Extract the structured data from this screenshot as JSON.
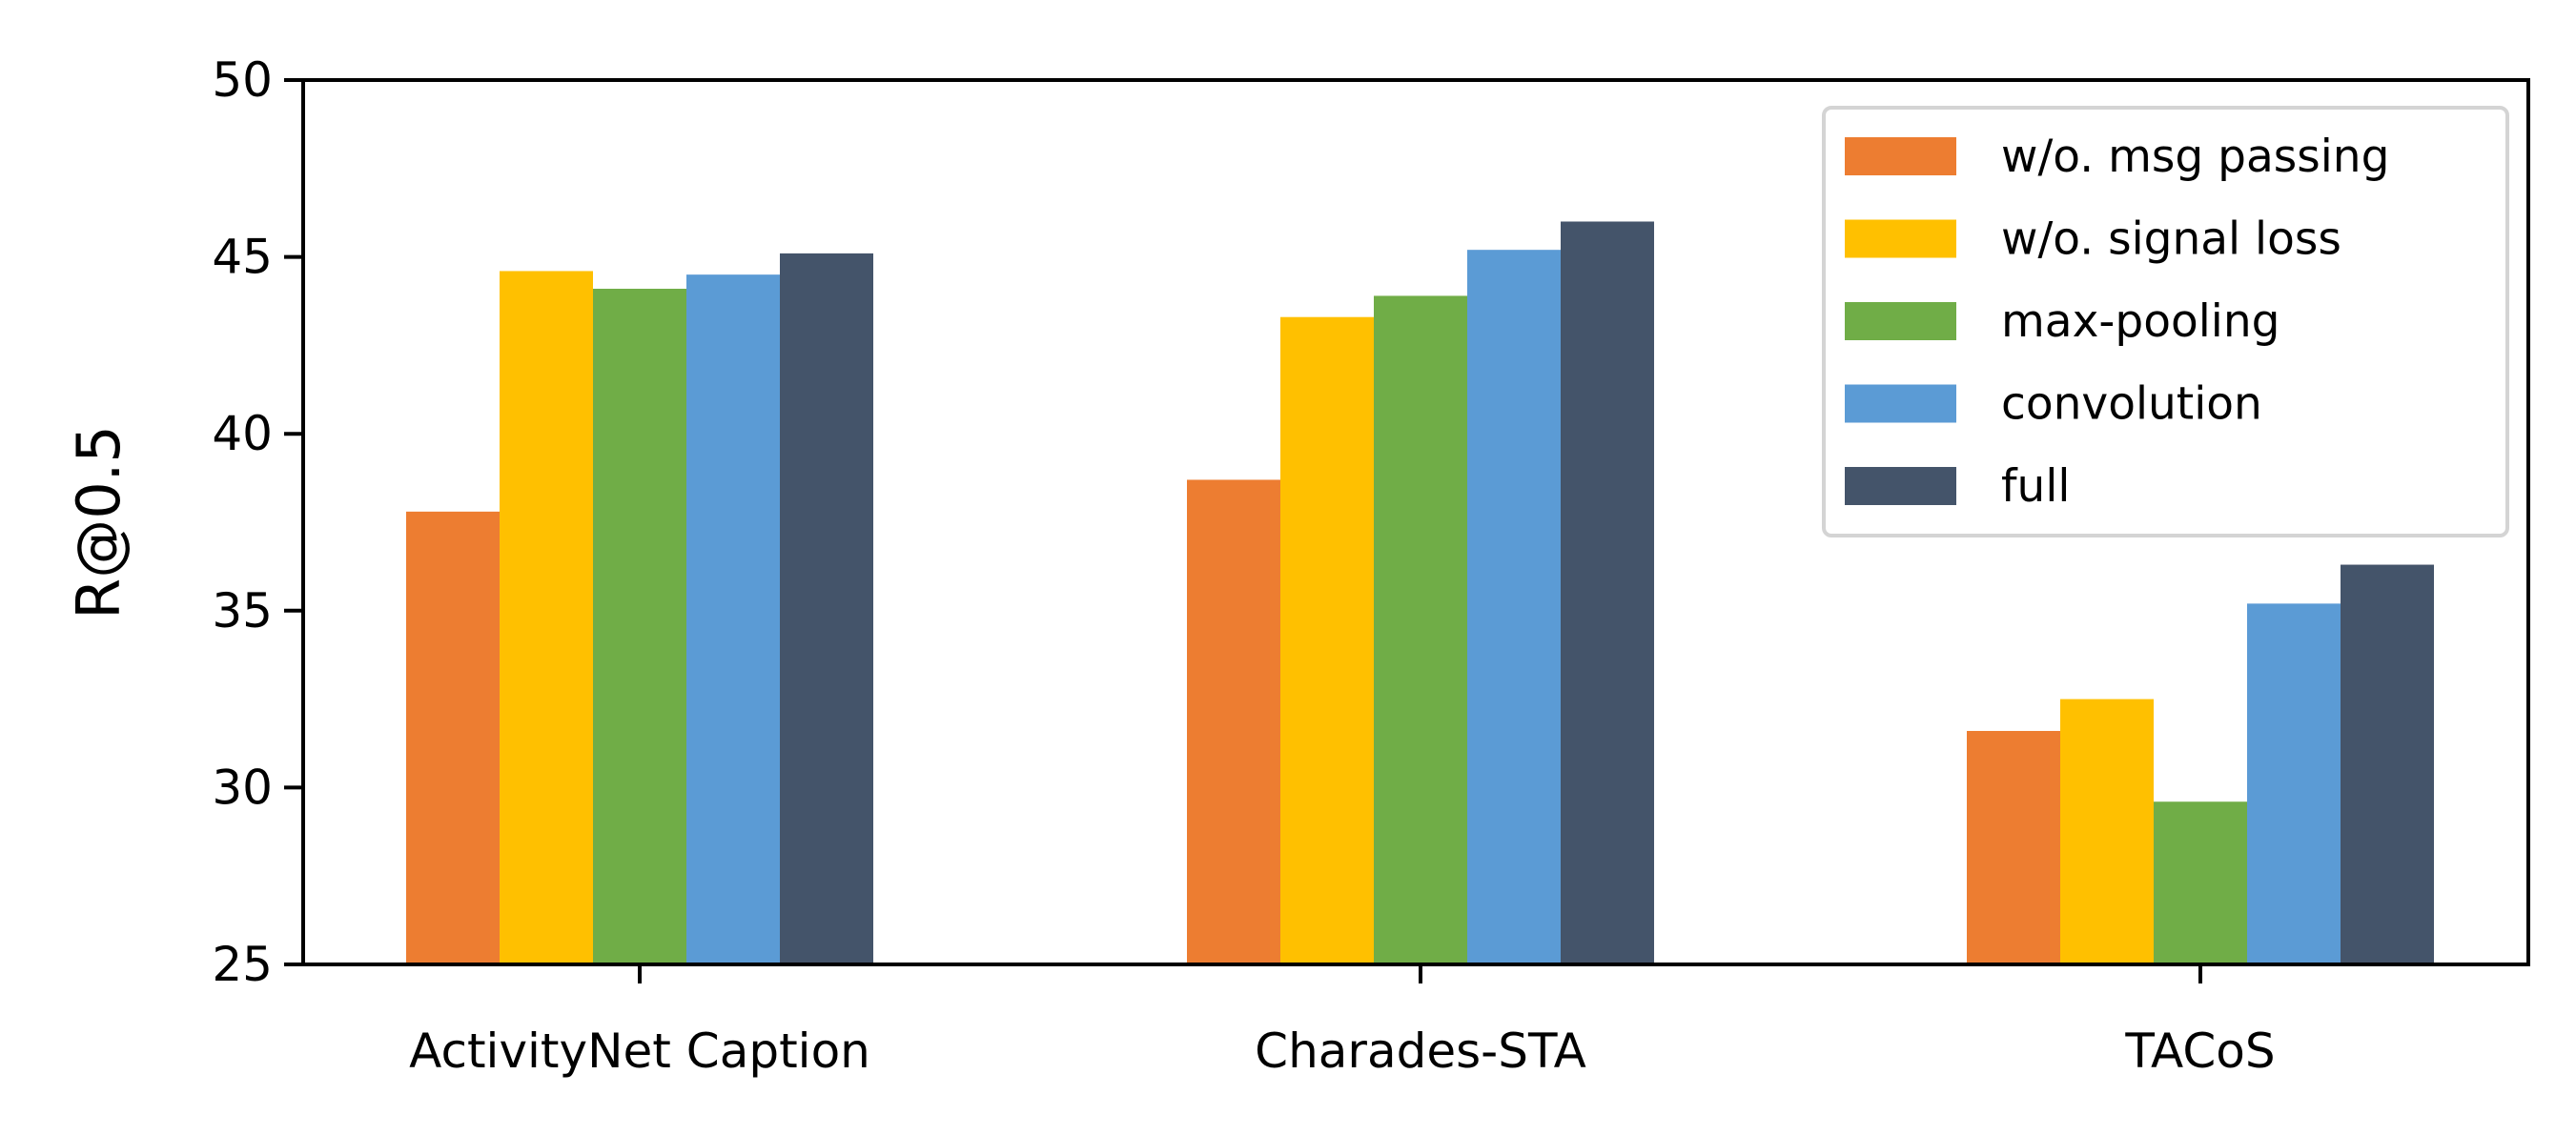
{
  "chart_data": {
    "type": "bar",
    "title": "",
    "xlabel": "",
    "ylabel": "R@0.5",
    "ylim": [
      25,
      50
    ],
    "yticks": [
      25,
      30,
      35,
      40,
      45,
      50
    ],
    "grid": false,
    "legend_position": "top-right",
    "categories": [
      "ActivityNet Caption",
      "Charades-STA",
      "TACoS"
    ],
    "series": [
      {
        "name": "w/o. msg passing",
        "color": "#ED7D31",
        "values": [
          37.8,
          38.7,
          31.6
        ]
      },
      {
        "name": "w/o. signal loss",
        "color": "#FFC000",
        "values": [
          44.6,
          43.3,
          32.5
        ]
      },
      {
        "name": "max-pooling",
        "color": "#70AD47",
        "values": [
          44.1,
          43.9,
          29.6
        ]
      },
      {
        "name": "convolution",
        "color": "#5B9BD5",
        "values": [
          44.5,
          45.2,
          35.2
        ]
      },
      {
        "name": "full",
        "color": "#44546A",
        "values": [
          45.1,
          46.0,
          36.3
        ]
      }
    ]
  }
}
